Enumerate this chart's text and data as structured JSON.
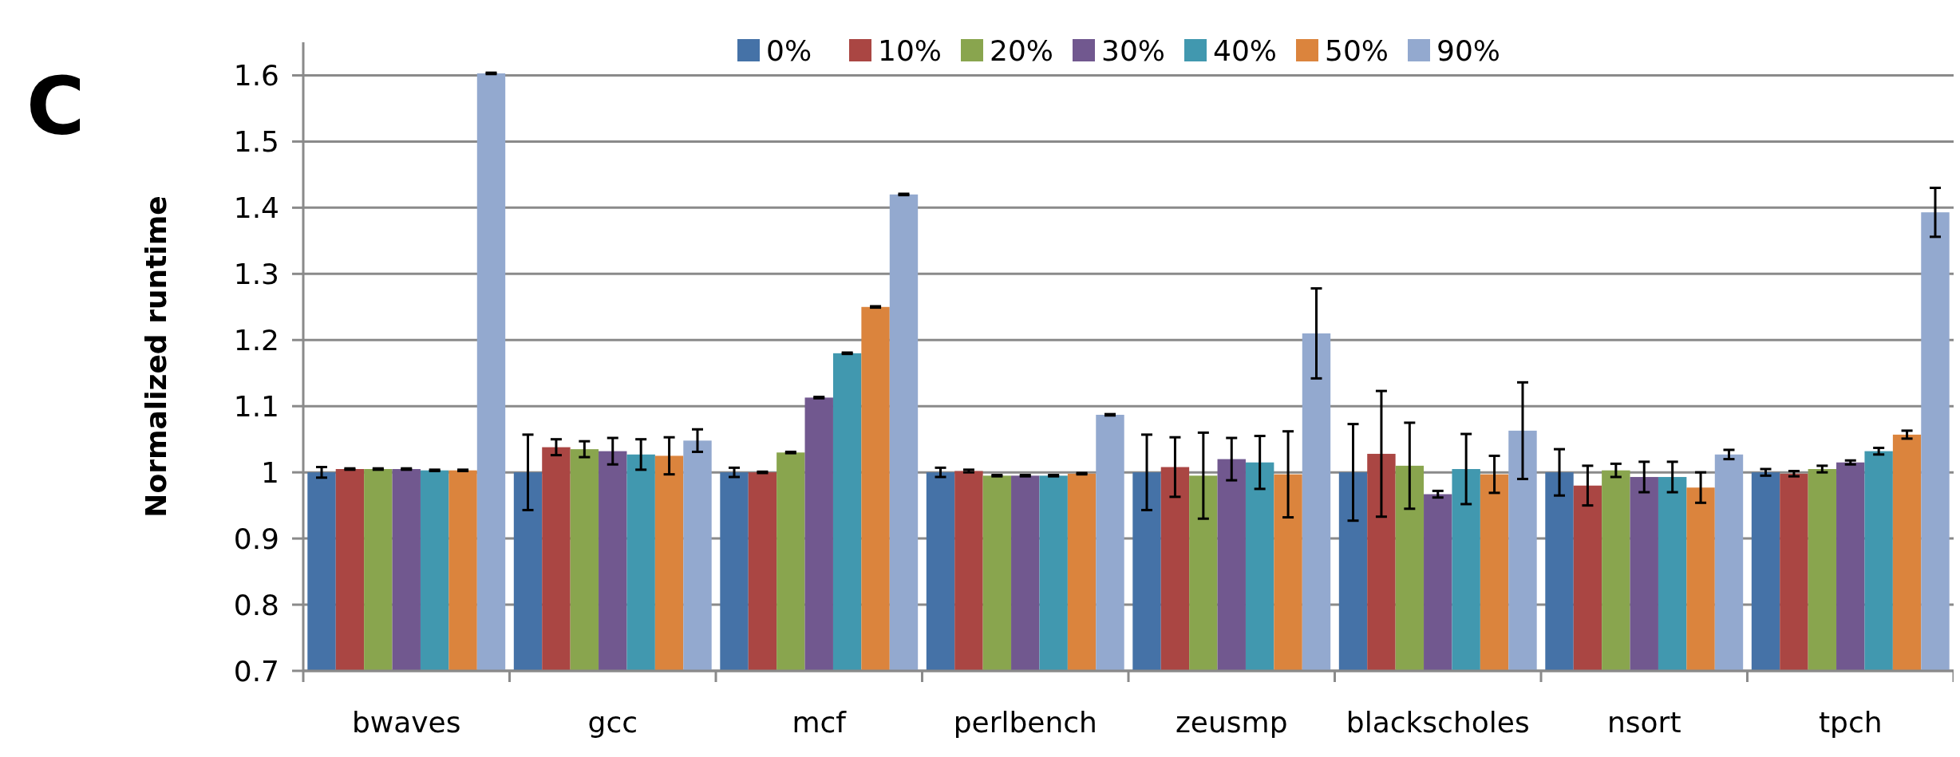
{
  "chart_data": {
    "type": "bar",
    "ylabel": "Normalized runtime",
    "annotations": [
      "C"
    ],
    "categories": [
      "bwaves",
      "gcc",
      "mcf",
      "perlbench",
      "zeusmp",
      "blackscholes",
      "nsort",
      "tpch"
    ],
    "series": [
      {
        "name": "0%",
        "color": "#4572a7",
        "values": [
          1.0,
          1.0,
          1.0,
          1.0,
          1.0,
          1.0,
          1.0,
          1.0
        ],
        "errors": [
          0.008,
          0.057,
          0.007,
          0.007,
          0.057,
          0.073,
          0.035,
          0.005
        ]
      },
      {
        "name": "10%",
        "color": "#aa4643",
        "values": [
          1.005,
          1.038,
          1.0,
          1.002,
          1.008,
          1.028,
          0.98,
          0.998
        ],
        "errors": [
          0.001,
          0.012,
          0.001,
          0.002,
          0.045,
          0.095,
          0.03,
          0.004
        ]
      },
      {
        "name": "20%",
        "color": "#89a54e",
        "values": [
          1.005,
          1.035,
          1.03,
          0.995,
          0.995,
          1.01,
          1.003,
          1.005
        ],
        "errors": [
          0.001,
          0.012,
          0.001,
          0.001,
          0.065,
          0.065,
          0.01,
          0.005
        ]
      },
      {
        "name": "30%",
        "color": "#71588f",
        "values": [
          1.005,
          1.032,
          1.113,
          0.995,
          1.02,
          0.967,
          0.993,
          1.015
        ],
        "errors": [
          0.001,
          0.02,
          0.001,
          0.001,
          0.032,
          0.005,
          0.023,
          0.003
        ]
      },
      {
        "name": "40%",
        "color": "#4198af",
        "values": [
          1.003,
          1.027,
          1.18,
          0.995,
          1.015,
          1.005,
          0.993,
          1.032
        ],
        "errors": [
          0.001,
          0.023,
          0.001,
          0.001,
          0.04,
          0.053,
          0.023,
          0.005
        ]
      },
      {
        "name": "50%",
        "color": "#db843d",
        "values": [
          1.003,
          1.025,
          1.25,
          0.998,
          0.997,
          0.997,
          0.977,
          1.057
        ],
        "errors": [
          0.001,
          0.028,
          0.001,
          0.001,
          0.065,
          0.028,
          0.023,
          0.006
        ]
      },
      {
        "name": "90%",
        "color": "#93a9cf",
        "values": [
          1.603,
          1.048,
          1.42,
          1.087,
          1.21,
          1.063,
          1.027,
          1.393
        ],
        "errors": [
          0.001,
          0.017,
          0.001,
          0.001,
          0.068,
          0.073,
          0.007,
          0.037
        ]
      }
    ],
    "ylim": [
      0.7,
      1.65
    ],
    "yticks": [
      0.7,
      0.8,
      0.9,
      1,
      1.1,
      1.2,
      1.3,
      1.4,
      1.5,
      1.6
    ],
    "grid": "y",
    "legend": "top"
  }
}
